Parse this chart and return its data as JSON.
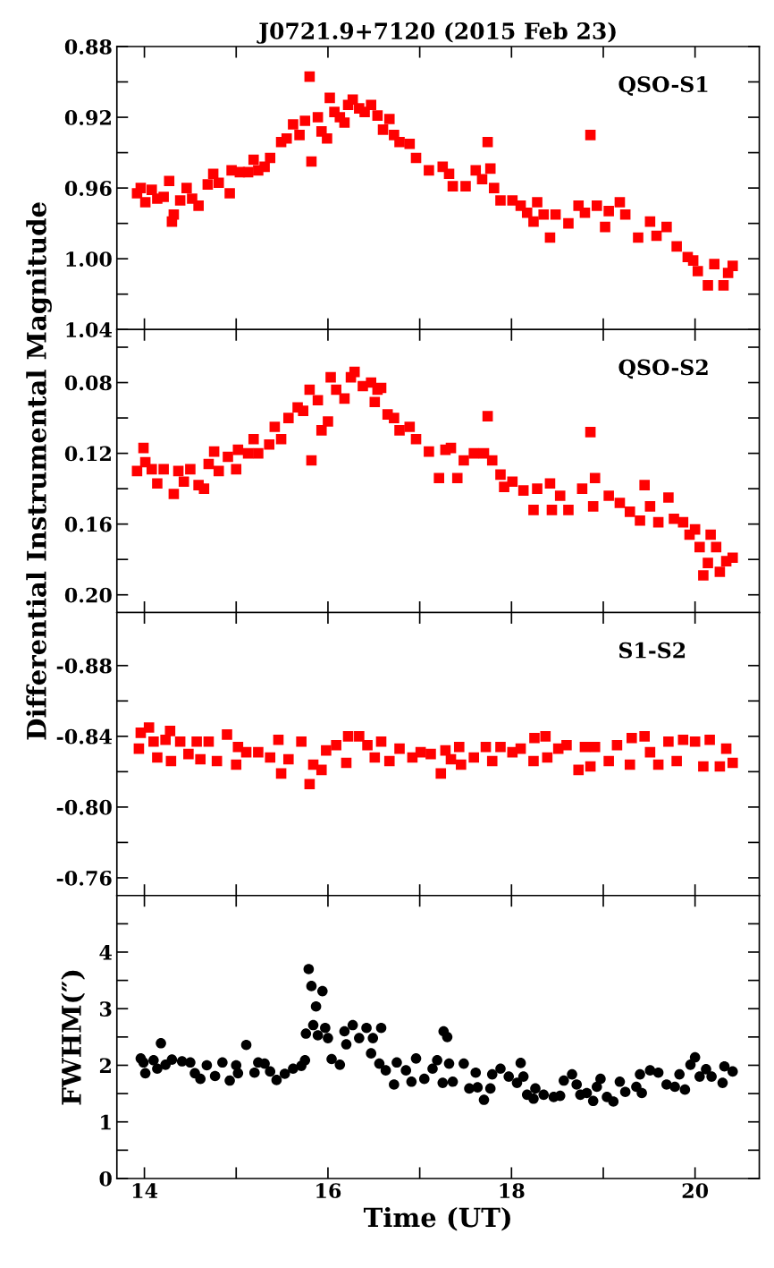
{
  "chart_data": [
    {
      "type": "scatter",
      "title": "J0721.9+7120 (2015 Feb 23)",
      "annotations": [
        "QSO-S1"
      ],
      "marker": "square",
      "color": "#ff0000",
      "tick_labels": "y",
      "xlim": [
        13.7,
        20.7
      ],
      "xticks": [
        14,
        {
          "value": 15,
          "label": null
        },
        16,
        {
          "value": 17,
          "label": null
        },
        18,
        {
          "value": 19,
          "label": null
        },
        20
      ],
      "ylim": [
        1.04,
        0.88
      ],
      "yticks": [
        0.88,
        {
          "value": 0.9,
          "label": null
        },
        0.92,
        {
          "value": 0.94,
          "label": null
        },
        0.96,
        {
          "value": 0.98,
          "label": null
        },
        {
          "value": 1.0,
          "label": "1.00"
        },
        {
          "value": 1.02,
          "label": null
        },
        1.04
      ],
      "x": [
        13.92,
        13.96,
        14.01,
        14.08,
        14.14,
        14.21,
        14.27,
        14.3,
        14.32,
        14.39,
        14.46,
        14.52,
        14.59,
        14.69,
        14.75,
        14.81,
        14.93,
        14.95,
        15.04,
        15.13,
        15.19,
        15.24,
        15.31,
        15.37,
        15.49,
        15.55,
        15.62,
        15.69,
        15.75,
        15.8,
        15.82,
        15.89,
        15.93,
        15.99,
        16.02,
        16.07,
        16.13,
        16.18,
        16.22,
        16.27,
        16.34,
        16.4,
        16.47,
        16.54,
        16.6,
        16.67,
        16.72,
        16.78,
        16.89,
        16.96,
        17.1,
        17.25,
        17.32,
        17.36,
        17.5,
        17.61,
        17.68,
        17.74,
        17.77,
        17.81,
        17.88,
        18.01,
        18.1,
        18.17,
        18.24,
        18.28,
        18.35,
        18.42,
        18.48,
        18.62,
        18.73,
        18.8,
        18.86,
        18.93,
        19.02,
        19.06,
        19.18,
        19.24,
        19.38,
        19.51,
        19.58,
        19.69,
        19.8,
        19.92,
        19.98,
        20.03,
        20.14,
        20.21,
        20.31,
        20.36,
        20.41
      ],
      "values": [
        0.963,
        0.96,
        0.968,
        0.961,
        0.966,
        0.965,
        0.956,
        0.979,
        0.975,
        0.967,
        0.96,
        0.966,
        0.97,
        0.958,
        0.952,
        0.957,
        0.963,
        0.95,
        0.951,
        0.951,
        0.944,
        0.95,
        0.948,
        0.943,
        0.934,
        0.932,
        0.924,
        0.93,
        0.922,
        0.897,
        0.945,
        0.92,
        0.928,
        0.932,
        0.909,
        0.917,
        0.92,
        0.923,
        0.913,
        0.91,
        0.915,
        0.917,
        0.913,
        0.919,
        0.927,
        0.921,
        0.93,
        0.934,
        0.935,
        0.943,
        0.95,
        0.948,
        0.952,
        0.959,
        0.959,
        0.95,
        0.955,
        0.934,
        0.949,
        0.96,
        0.967,
        0.967,
        0.97,
        0.974,
        0.979,
        0.968,
        0.975,
        0.988,
        0.975,
        0.98,
        0.97,
        0.974,
        0.93,
        0.97,
        0.982,
        0.973,
        0.968,
        0.975,
        0.988,
        0.979,
        0.987,
        0.982,
        0.993,
        0.999,
        1.001,
        1.007,
        1.015,
        1.003,
        1.015,
        1.008,
        1.004
      ]
    },
    {
      "type": "scatter",
      "ylabel": "Differential Instrumental Magnitude",
      "annotations": [
        "QSO-S2"
      ],
      "marker": "square",
      "color": "#ff0000",
      "tick_labels": "y",
      "xlim": [
        13.7,
        20.7
      ],
      "xticks": [
        14,
        {
          "value": 15,
          "label": null
        },
        16,
        {
          "value": 17,
          "label": null
        },
        18,
        {
          "value": 19,
          "label": null
        },
        20
      ],
      "ylim": [
        0.21,
        0.05
      ],
      "yticks": [
        {
          "value": 0.06,
          "label": null
        },
        0.08,
        {
          "value": 0.1,
          "label": null
        },
        0.12,
        {
          "value": 0.14,
          "label": null
        },
        0.16,
        {
          "value": 0.18,
          "label": null
        },
        {
          "value": 0.2,
          "label": "0.20"
        }
      ],
      "x": [
        13.92,
        13.99,
        14.01,
        14.08,
        14.14,
        14.21,
        14.32,
        14.37,
        14.43,
        14.5,
        14.59,
        14.65,
        14.7,
        14.76,
        14.81,
        14.91,
        15.0,
        15.02,
        15.13,
        15.19,
        15.24,
        15.36,
        15.42,
        15.49,
        15.57,
        15.67,
        15.73,
        15.8,
        15.82,
        15.89,
        15.93,
        16.0,
        16.03,
        16.09,
        16.18,
        16.25,
        16.29,
        16.38,
        16.47,
        16.51,
        16.54,
        16.58,
        16.65,
        16.72,
        16.78,
        16.89,
        16.96,
        17.1,
        17.21,
        17.28,
        17.34,
        17.41,
        17.48,
        17.59,
        17.7,
        17.74,
        17.79,
        17.88,
        17.92,
        18.01,
        18.13,
        18.24,
        18.28,
        18.42,
        18.44,
        18.53,
        18.62,
        18.77,
        18.86,
        18.89,
        18.91,
        19.06,
        19.18,
        19.29,
        19.4,
        19.45,
        19.51,
        19.6,
        19.71,
        19.77,
        19.87,
        19.94,
        20.0,
        20.05,
        20.09,
        20.14,
        20.17,
        20.23,
        20.27,
        20.34,
        20.41
      ],
      "values": [
        0.13,
        0.117,
        0.125,
        0.129,
        0.137,
        0.129,
        0.143,
        0.13,
        0.136,
        0.129,
        0.138,
        0.14,
        0.126,
        0.119,
        0.13,
        0.122,
        0.129,
        0.118,
        0.12,
        0.112,
        0.12,
        0.115,
        0.105,
        0.112,
        0.1,
        0.094,
        0.096,
        0.084,
        0.124,
        0.09,
        0.107,
        0.102,
        0.077,
        0.084,
        0.089,
        0.077,
        0.074,
        0.082,
        0.08,
        0.091,
        0.084,
        0.083,
        0.098,
        0.1,
        0.107,
        0.105,
        0.112,
        0.119,
        0.134,
        0.118,
        0.117,
        0.134,
        0.124,
        0.12,
        0.12,
        0.099,
        0.124,
        0.132,
        0.139,
        0.136,
        0.141,
        0.152,
        0.14,
        0.137,
        0.152,
        0.144,
        0.152,
        0.14,
        0.108,
        0.15,
        0.134,
        0.144,
        0.148,
        0.153,
        0.158,
        0.138,
        0.15,
        0.159,
        0.145,
        0.157,
        0.159,
        0.166,
        0.163,
        0.173,
        0.189,
        0.182,
        0.166,
        0.173,
        0.187,
        0.181,
        0.179
      ]
    },
    {
      "type": "scatter",
      "annotations": [
        "S1-S2"
      ],
      "marker": "square",
      "color": "#ff0000",
      "tick_labels": "y",
      "xlim": [
        13.7,
        20.7
      ],
      "xticks": [
        14,
        {
          "value": 15,
          "label": null
        },
        16,
        {
          "value": 17,
          "label": null
        },
        18,
        {
          "value": 19,
          "label": null
        },
        20
      ],
      "ylim": [
        -0.75,
        -0.91
      ],
      "yticks": [
        -0.88,
        {
          "value": -0.86,
          "label": null
        },
        -0.84,
        {
          "value": -0.82,
          "label": null
        },
        {
          "value": -0.8,
          "label": "-0.80"
        },
        {
          "value": -0.78,
          "label": null
        },
        -0.76
      ],
      "x": [
        13.94,
        13.96,
        14.05,
        14.1,
        14.14,
        14.23,
        14.28,
        14.29,
        14.39,
        14.48,
        14.57,
        14.61,
        14.7,
        14.79,
        14.9,
        15.0,
        15.02,
        15.11,
        15.24,
        15.37,
        15.46,
        15.49,
        15.57,
        15.71,
        15.8,
        15.84,
        15.93,
        15.98,
        16.09,
        16.2,
        16.22,
        16.34,
        16.43,
        16.51,
        16.58,
        16.67,
        16.78,
        16.92,
        17.01,
        17.12,
        17.23,
        17.28,
        17.34,
        17.43,
        17.45,
        17.59,
        17.72,
        17.79,
        17.88,
        18.01,
        18.1,
        18.24,
        18.25,
        18.37,
        18.39,
        18.51,
        18.6,
        18.73,
        18.8,
        18.86,
        18.91,
        19.06,
        19.15,
        19.29,
        19.31,
        19.45,
        19.51,
        19.6,
        19.71,
        19.8,
        19.87,
        20.0,
        20.09,
        20.16,
        20.27,
        20.34,
        20.41
      ],
      "values": [
        -0.833,
        -0.842,
        -0.845,
        -0.837,
        -0.828,
        -0.838,
        -0.843,
        -0.826,
        -0.837,
        -0.83,
        -0.837,
        -0.827,
        -0.837,
        -0.826,
        -0.841,
        -0.824,
        -0.834,
        -0.831,
        -0.831,
        -0.828,
        -0.838,
        -0.819,
        -0.827,
        -0.837,
        -0.813,
        -0.824,
        -0.821,
        -0.832,
        -0.835,
        -0.825,
        -0.84,
        -0.84,
        -0.835,
        -0.828,
        -0.837,
        -0.826,
        -0.833,
        -0.828,
        -0.831,
        -0.83,
        -0.819,
        -0.832,
        -0.827,
        -0.834,
        -0.824,
        -0.828,
        -0.834,
        -0.826,
        -0.834,
        -0.831,
        -0.833,
        -0.826,
        -0.839,
        -0.84,
        -0.828,
        -0.833,
        -0.835,
        -0.821,
        -0.834,
        -0.823,
        -0.834,
        -0.826,
        -0.835,
        -0.824,
        -0.839,
        -0.84,
        -0.831,
        -0.824,
        -0.837,
        -0.826,
        -0.838,
        -0.837,
        -0.823,
        -0.838,
        -0.823,
        -0.833,
        -0.825
      ]
    },
    {
      "type": "scatter",
      "xlabel": "Time (UT)",
      "ylabel": "FWHM(″)",
      "marker": "circle",
      "color": "#000000",
      "xlim": [
        13.7,
        20.7
      ],
      "xticks": [
        14,
        {
          "value": 15,
          "label": null
        },
        16,
        {
          "value": 17,
          "label": null
        },
        18,
        {
          "value": 19,
          "label": null
        },
        20
      ],
      "ylim": [
        0,
        5
      ],
      "yticks": [
        0,
        {
          "value": 0.5,
          "label": null
        },
        1,
        {
          "value": 1.5,
          "label": null
        },
        2,
        {
          "value": 2.5,
          "label": null
        },
        3,
        {
          "value": 3.5,
          "label": null
        },
        4,
        {
          "value": 4.5,
          "label": null
        }
      ],
      "x": [
        13.96,
        13.99,
        14.01,
        14.1,
        14.14,
        14.18,
        14.23,
        14.3,
        14.41,
        14.5,
        14.55,
        14.61,
        14.68,
        14.77,
        14.85,
        14.93,
        15.0,
        15.02,
        15.11,
        15.2,
        15.24,
        15.31,
        15.37,
        15.44,
        15.53,
        15.62,
        15.71,
        15.75,
        15.76,
        15.79,
        15.82,
        15.87,
        15.84,
        15.89,
        15.94,
        15.97,
        16.0,
        16.04,
        16.13,
        16.18,
        16.2,
        16.27,
        16.34,
        16.42,
        16.49,
        16.58,
        16.47,
        16.56,
        16.63,
        16.72,
        16.75,
        16.85,
        16.91,
        16.96,
        17.05,
        17.14,
        17.19,
        17.25,
        17.26,
        17.3,
        17.32,
        17.36,
        17.48,
        17.54,
        17.61,
        17.63,
        17.7,
        17.77,
        17.79,
        17.88,
        17.97,
        18.06,
        18.1,
        18.13,
        18.17,
        18.24,
        18.26,
        18.35,
        18.46,
        18.53,
        18.57,
        18.66,
        18.71,
        18.75,
        18.82,
        18.89,
        18.93,
        18.97,
        19.04,
        19.11,
        19.18,
        19.24,
        19.36,
        19.4,
        19.42,
        19.51,
        19.6,
        19.69,
        19.78,
        19.83,
        19.89,
        19.95,
        20.0,
        20.05,
        20.12,
        20.18,
        20.3,
        20.32,
        20.41
      ],
      "values": [
        2.12,
        2.05,
        1.86,
        2.09,
        1.94,
        2.39,
        2.01,
        2.1,
        2.07,
        2.05,
        1.86,
        1.76,
        2.0,
        1.81,
        2.05,
        1.73,
        2.0,
        1.86,
        2.36,
        1.87,
        2.05,
        2.03,
        1.89,
        1.74,
        1.85,
        1.94,
        1.99,
        2.09,
        2.56,
        3.7,
        3.4,
        3.04,
        2.71,
        2.53,
        3.31,
        2.66,
        2.48,
        2.11,
        2.01,
        2.6,
        2.37,
        2.71,
        2.48,
        2.66,
        2.48,
        2.66,
        2.21,
        2.03,
        1.91,
        1.66,
        2.05,
        1.91,
        1.71,
        2.12,
        1.76,
        1.94,
        2.09,
        1.69,
        2.6,
        2.5,
        2.03,
        1.71,
        2.03,
        1.59,
        1.87,
        1.61,
        1.39,
        1.59,
        1.84,
        1.94,
        1.8,
        1.69,
        2.04,
        1.8,
        1.48,
        1.41,
        1.59,
        1.48,
        1.44,
        1.46,
        1.73,
        1.84,
        1.66,
        1.48,
        1.51,
        1.37,
        1.62,
        1.76,
        1.44,
        1.36,
        1.71,
        1.53,
        1.62,
        1.84,
        1.51,
        1.91,
        1.87,
        1.66,
        1.62,
        1.84,
        1.57,
        2.01,
        2.14,
        1.8,
        1.93,
        1.8,
        1.69,
        1.98,
        1.89
      ]
    }
  ]
}
